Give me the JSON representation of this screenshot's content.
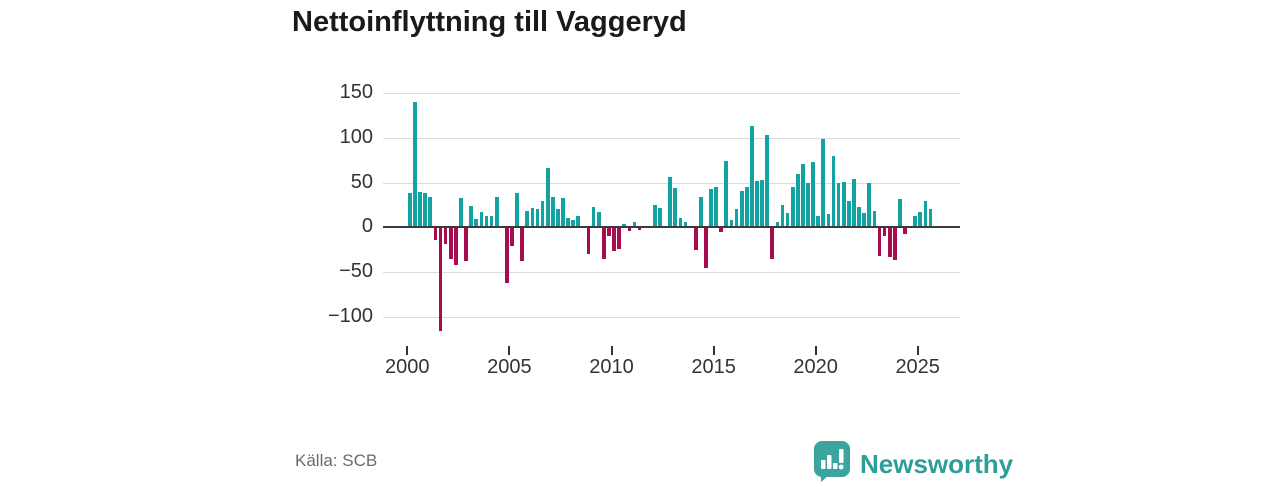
{
  "title": "Nettoinflyttning till Vaggeryd",
  "source": "Källa: SCB",
  "branding": {
    "name": "Newsworthy",
    "icon": "newsworthy-speech-bubble-bars-icon"
  },
  "colors": {
    "positive_bar": "#12a2a2",
    "negative_bar": "#a50d4f",
    "axis": "#3a3a3a",
    "grid": "#dbdbdb",
    "tick_text": "#333333",
    "muted_text": "#6b6b6b",
    "brand": "#2d9e98",
    "brand_icon": "#3ba49e"
  },
  "chart_data": {
    "type": "bar",
    "title": "Nettoinflyttning till Vaggeryd",
    "frequency": "quarterly",
    "x_start": "2000-Q1",
    "x_end": "2025-Q3",
    "x_tick_labels": [
      "2000",
      "2005",
      "2010",
      "2015",
      "2020",
      "2025"
    ],
    "y_ticks": [
      150,
      100,
      50,
      0,
      -50,
      -100
    ],
    "y_tick_labels": [
      "150",
      "100",
      "50",
      "0",
      "−50",
      "−100"
    ],
    "ylim": [
      -125,
      158
    ],
    "grid": true,
    "legend": false,
    "series": [
      {
        "name": "Nettoinflyttning",
        "values": [
          39,
          140,
          40,
          38,
          34,
          -13,
          -115,
          -18,
          -34,
          -41,
          33,
          -37,
          24,
          9,
          17,
          13,
          13,
          34,
          0,
          -61,
          -20,
          38,
          -37,
          18,
          22,
          20,
          30,
          67,
          34,
          21,
          33,
          11,
          8,
          13,
          0,
          -29,
          23,
          17,
          -35,
          -9,
          -25,
          -23,
          4,
          -3,
          6,
          -2,
          0,
          0,
          25,
          22,
          0,
          56,
          44,
          10,
          6,
          0,
          -24,
          34,
          -44,
          43,
          45,
          -4,
          74,
          8,
          20,
          41,
          45,
          114,
          52,
          53,
          104,
          -35,
          6,
          25,
          16,
          45,
          60,
          71,
          50,
          73,
          13,
          99,
          15,
          80,
          50,
          51,
          30,
          54,
          23,
          16,
          50,
          18,
          -31,
          -9,
          -32,
          -36,
          32,
          -7,
          0,
          13,
          17,
          30,
          20
        ]
      }
    ]
  }
}
